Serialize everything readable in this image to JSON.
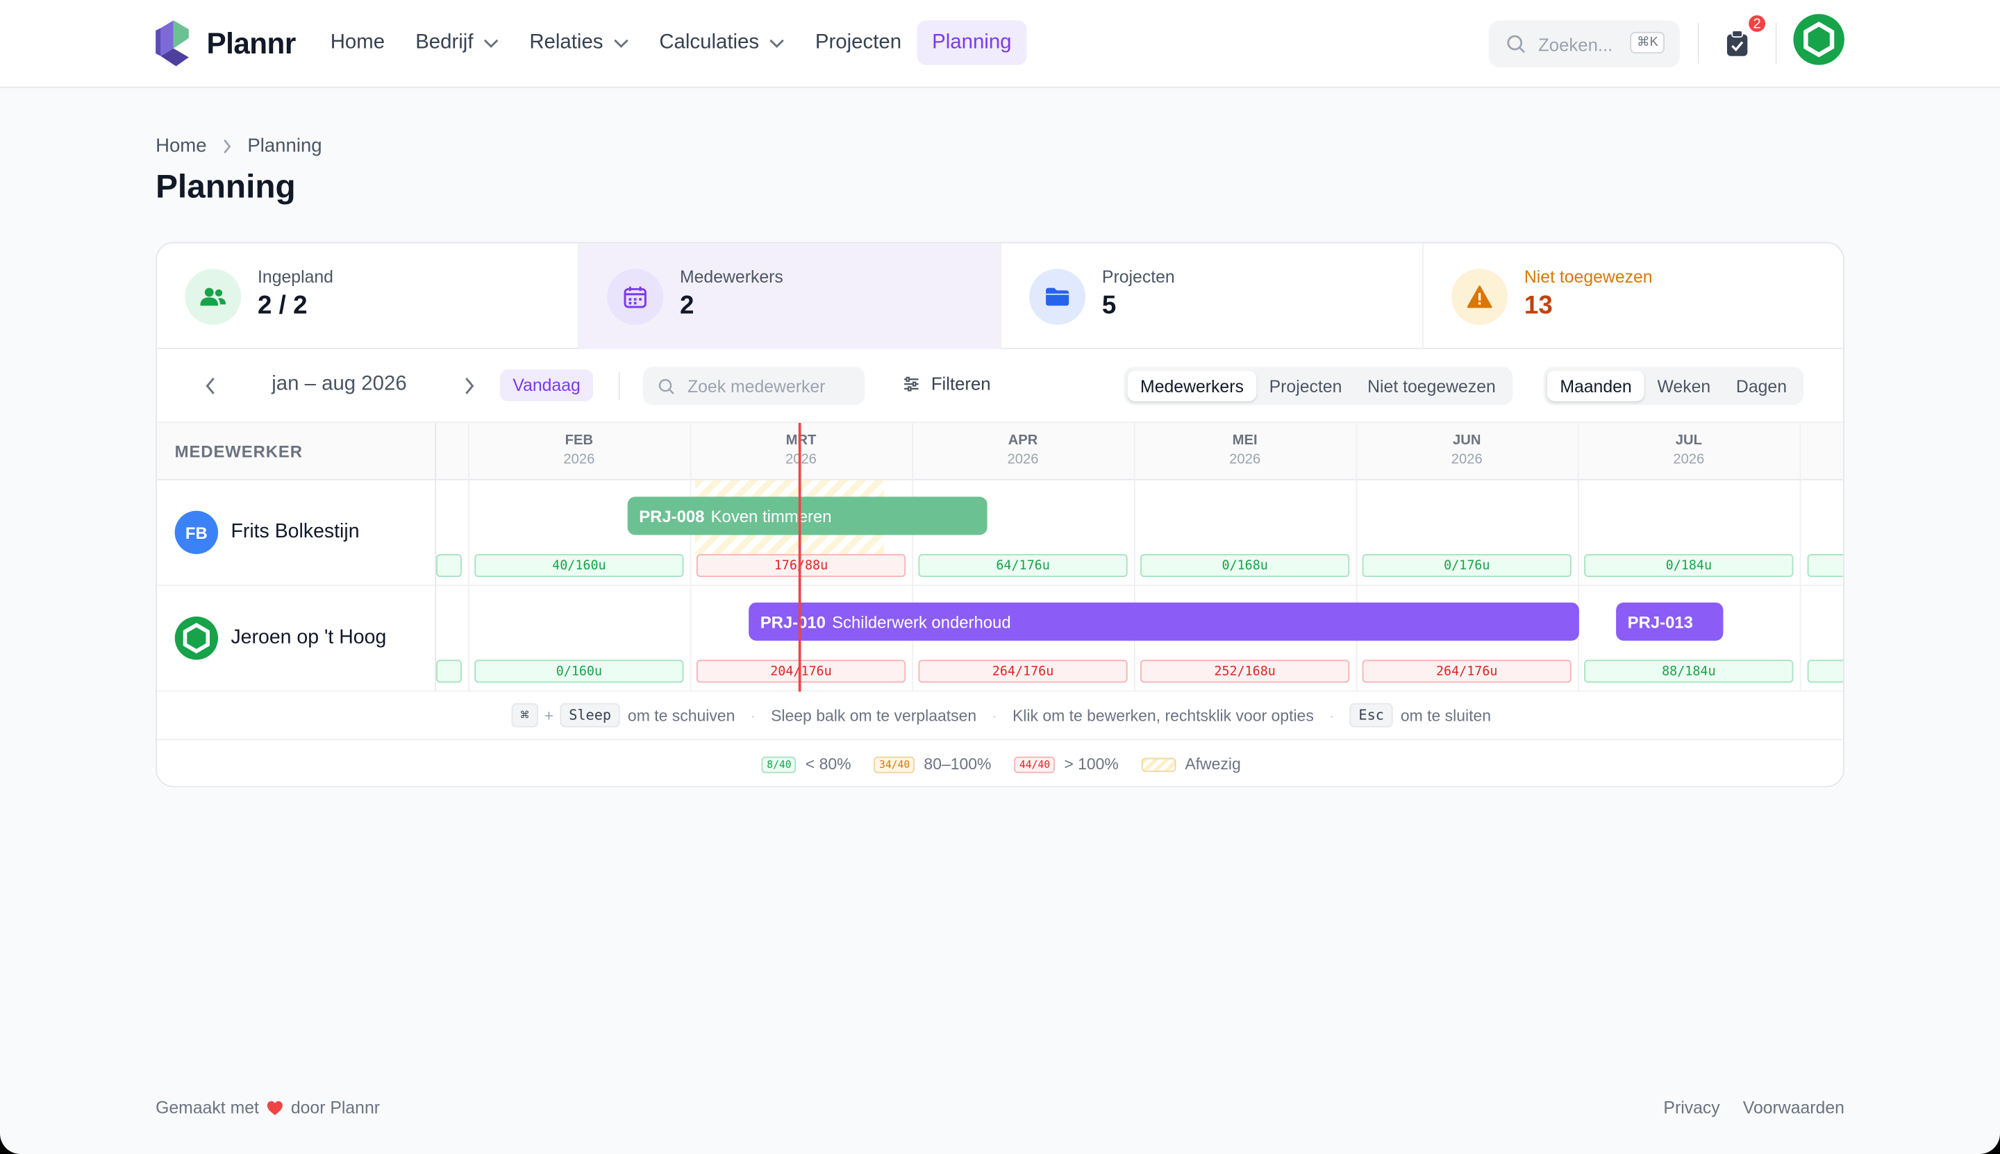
{
  "app": {
    "name": "Plannr"
  },
  "nav": {
    "items": [
      {
        "label": "Home",
        "dropdown": false,
        "active": false
      },
      {
        "label": "Bedrijf",
        "dropdown": true,
        "active": false
      },
      {
        "label": "Relaties",
        "dropdown": true,
        "active": false
      },
      {
        "label": "Calculaties",
        "dropdown": true,
        "active": false
      },
      {
        "label": "Projecten",
        "dropdown": false,
        "active": false
      },
      {
        "label": "Planning",
        "dropdown": false,
        "active": true
      }
    ],
    "search_placeholder": "Zoeken...",
    "search_shortcut": "⌘K",
    "notification_count": "2"
  },
  "breadcrumb": {
    "home": "Home",
    "current": "Planning"
  },
  "page_title": "Planning",
  "stats": [
    {
      "label": "Ingepland",
      "value": "2 / 2",
      "icon": "users-icon",
      "accent": "#16a34a"
    },
    {
      "label": "Medewerkers",
      "value": "2",
      "icon": "calendar-icon",
      "accent": "#7c3aed"
    },
    {
      "label": "Projecten",
      "value": "5",
      "icon": "folder-icon",
      "accent": "#2563eb"
    },
    {
      "label": "Niet toegewezen",
      "value": "13",
      "icon": "warning-icon",
      "accent": "#d97706"
    }
  ],
  "toolbar": {
    "range": "jan – aug 2026",
    "today": "Vandaag",
    "search_placeholder": "Zoek medewerker",
    "filter": "Filteren",
    "views": [
      "Medewerkers",
      "Projecten",
      "Niet toegewezen"
    ],
    "active_view": "Medewerkers",
    "scales": [
      "Maanden",
      "Weken",
      "Dagen"
    ],
    "active_scale": "Maanden"
  },
  "gantt": {
    "column_header": "MEDEWERKER",
    "months": [
      {
        "name": "FEB",
        "year": "2026"
      },
      {
        "name": "MRT",
        "year": "2026"
      },
      {
        "name": "APR",
        "year": "2026"
      },
      {
        "name": "MEI",
        "year": "2026"
      },
      {
        "name": "JUN",
        "year": "2026"
      },
      {
        "name": "JUL",
        "year": "2026"
      }
    ],
    "rows": [
      {
        "name": "Frits Bolkestijn",
        "initials": "FB",
        "avatar_color": "#3b82f6",
        "bars": [
          {
            "code": "PRJ-008",
            "title": "Koven timmeren",
            "color": "#6cc193"
          }
        ],
        "hours": [
          {
            "text": "40/160u",
            "status": "ok"
          },
          {
            "text": "176/88u",
            "status": "over"
          },
          {
            "text": "64/176u",
            "status": "ok"
          },
          {
            "text": "0/168u",
            "status": "ok"
          },
          {
            "text": "0/176u",
            "status": "ok"
          },
          {
            "text": "0/184u",
            "status": "ok"
          }
        ]
      },
      {
        "name": "Jeroen op 't Hoog",
        "initials": "",
        "avatar_color": "#16a34a",
        "bars": [
          {
            "code": "PRJ-010",
            "title": "Schilderwerk onderhoud",
            "color": "#8b5cf6"
          },
          {
            "code": "PRJ-013",
            "title": "",
            "color": "#8b5cf6"
          }
        ],
        "hours": [
          {
            "text": "0/160u",
            "status": "ok"
          },
          {
            "text": "204/176u",
            "status": "over"
          },
          {
            "text": "264/176u",
            "status": "over"
          },
          {
            "text": "252/168u",
            "status": "over"
          },
          {
            "text": "264/176u",
            "status": "over"
          },
          {
            "text": "88/184u",
            "status": "ok"
          }
        ]
      }
    ]
  },
  "hints": {
    "key1": "⌘",
    "plus": "+",
    "key2": "Sleep",
    "h1": "om te schuiven",
    "h2": "Sleep balk om te verplaatsen",
    "h3": "Klik om te bewerken, rechtsklik voor opties",
    "key3": "Esc",
    "h4": "om te sluiten",
    "sep": "·"
  },
  "legend": [
    {
      "chip": "8/40",
      "label": "< 80%",
      "status": "ok"
    },
    {
      "chip": "34/40",
      "label": "80–100%",
      "status": "warn"
    },
    {
      "chip": "44/40",
      "label": "> 100%",
      "status": "over"
    },
    {
      "chip": "",
      "label": "Afwezig",
      "status": "absent"
    }
  ],
  "footer": {
    "made_with": "Gemaakt met",
    "by": "door Plannr",
    "links": [
      "Privacy",
      "Voorwaarden"
    ]
  }
}
